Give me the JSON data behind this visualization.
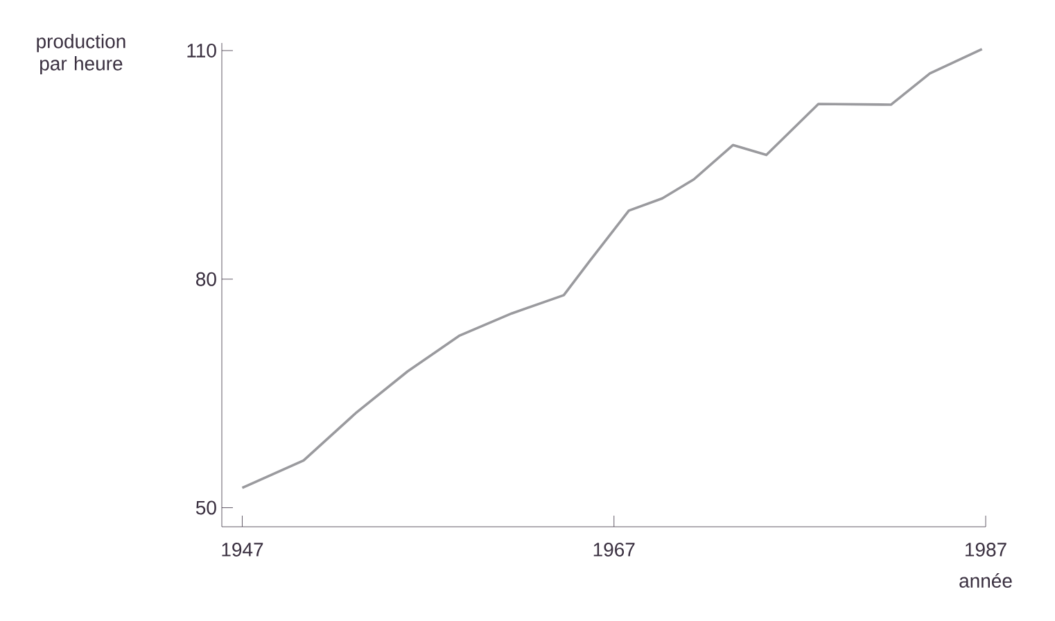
{
  "chart_data": {
    "type": "line",
    "xlabel": "année",
    "ylabel": "production par heure",
    "x": [
      1947,
      1950.3,
      1953.1,
      1955.9,
      1958.7,
      1961.5,
      1964.3,
      1965.7,
      1967.8,
      1969.6,
      1971.3,
      1973.4,
      1975.2,
      1978.0,
      1981.9,
      1984.0,
      1986.8
    ],
    "values": [
      52.6,
      56.2,
      62.4,
      67.9,
      72.6,
      75.5,
      77.9,
      82.4,
      89.0,
      90.6,
      93.1,
      97.6,
      96.3,
      103.0,
      102.9,
      107.0,
      110.2
    ],
    "color": "#9a9a9e",
    "xlim": [
      1945.9,
      1987
    ],
    "ylim": [
      47.5,
      111
    ],
    "xticks": [
      1947,
      1967,
      1987
    ],
    "yticks": [
      50,
      80,
      110
    ],
    "grid": false,
    "marker": "none",
    "line_style": "solid"
  }
}
